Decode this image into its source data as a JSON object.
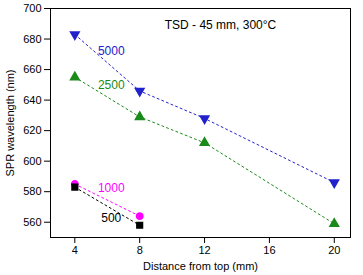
{
  "chart_data": {
    "type": "line",
    "title": "TSD - 45 mm, 300°C",
    "x_label": "Distance from top (mm)",
    "y_label": "SPR wavelength (nm)",
    "xlim": [
      2.5,
      21
    ],
    "xticks": [
      4,
      8,
      12,
      16,
      20
    ],
    "ylim": [
      550,
      700
    ],
    "yticks": [
      560,
      580,
      600,
      620,
      640,
      660,
      680,
      700
    ],
    "grid": false,
    "line_style": "dotted",
    "series": [
      {
        "name": "5000",
        "color": "#2222cc",
        "marker": "triangle-down",
        "x": [
          4,
          8,
          12,
          20
        ],
        "values": [
          683,
          646,
          628,
          586
        ]
      },
      {
        "name": "2500",
        "color": "#1a8a1a",
        "marker": "triangle-up",
        "x": [
          4,
          8,
          12,
          20
        ],
        "values": [
          655,
          629,
          612,
          559
        ]
      },
      {
        "name": "1000",
        "color": "#ff00ff",
        "marker": "circle",
        "x": [
          4,
          8
        ],
        "values": [
          585,
          564
        ]
      },
      {
        "name": "500",
        "color": "#000000",
        "marker": "square",
        "x": [
          4,
          8
        ],
        "values": [
          583,
          558
        ]
      }
    ]
  }
}
